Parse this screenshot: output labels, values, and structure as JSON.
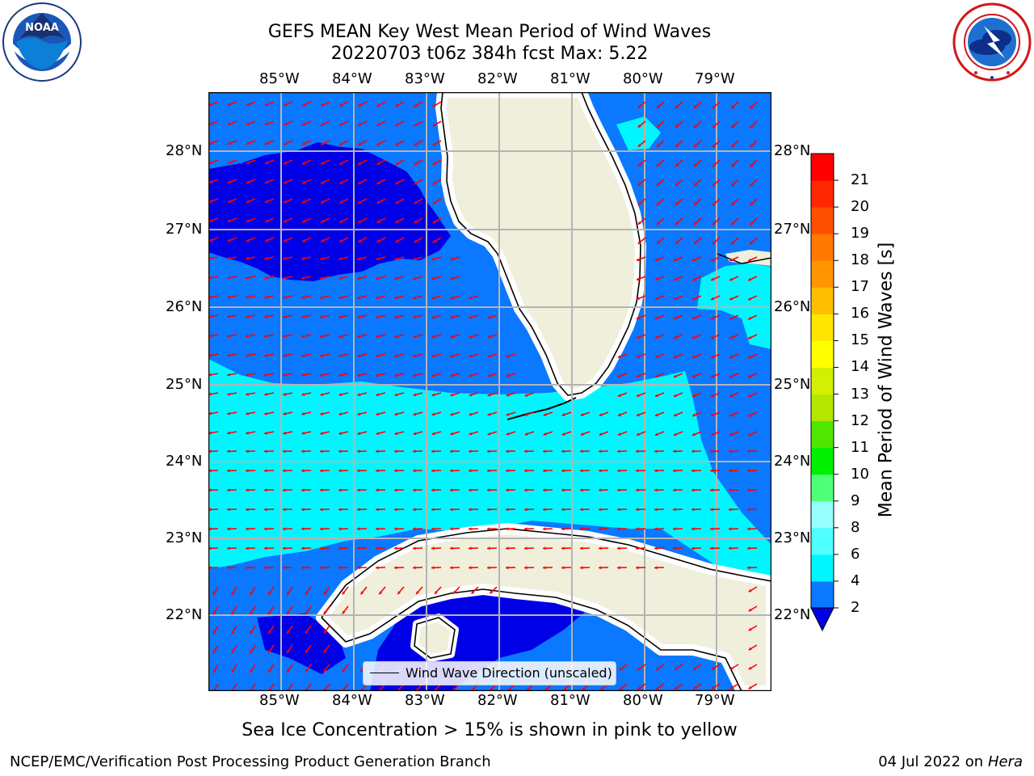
{
  "title": {
    "line1": "GEFS MEAN Key West Mean Period of Wind Waves",
    "line2": "20220703 t06z 384h fcst    Max: 5.22"
  },
  "logos": {
    "left": {
      "name": "noaa-logo",
      "text": "NOAA"
    },
    "right": {
      "name": "nws-logo"
    }
  },
  "map": {
    "lon_labels": [
      "85°W",
      "84°W",
      "83°W",
      "82°W",
      "81°W",
      "80°W",
      "79°W"
    ],
    "lat_labels": [
      "28°N",
      "27°N",
      "26°N",
      "25°N",
      "24°N",
      "23°N",
      "22°N"
    ],
    "colors": {
      "water_2_4": "#0a78ff",
      "water_lt2": "#0000e6",
      "water_4_6": "#00f6ff",
      "land": "#efefdc",
      "arrow": "#ff0000",
      "grid": "#b4b4b4"
    }
  },
  "legend": {
    "label": "Wind Wave Direction (unscaled)"
  },
  "colorbar": {
    "title": "Mean Period of Wind Waves [s]",
    "ticks": [
      "2",
      "4",
      "6",
      "8",
      "9",
      "10",
      "11",
      "12",
      "13",
      "14",
      "15",
      "16",
      "17",
      "18",
      "19",
      "20",
      "21"
    ],
    "colors": [
      "#0a78ff",
      "#00f6ff",
      "#50ffff",
      "#96ffff",
      "#50ff78",
      "#00f000",
      "#50e600",
      "#b4e600",
      "#d2f000",
      "#ffff00",
      "#ffe600",
      "#ffbe00",
      "#ff9600",
      "#ff7800",
      "#ff5000",
      "#ff2800",
      "#ff0000"
    ],
    "under_color": "#0000e6"
  },
  "footer": {
    "ice_note": "Sea Ice Concentration > 15% is shown in pink to yellow",
    "credit": "NCEP/EMC/Verification Post Processing Product Generation Branch",
    "date_prefix": "04 Jul 2022 on ",
    "date_host": "Hera"
  }
}
